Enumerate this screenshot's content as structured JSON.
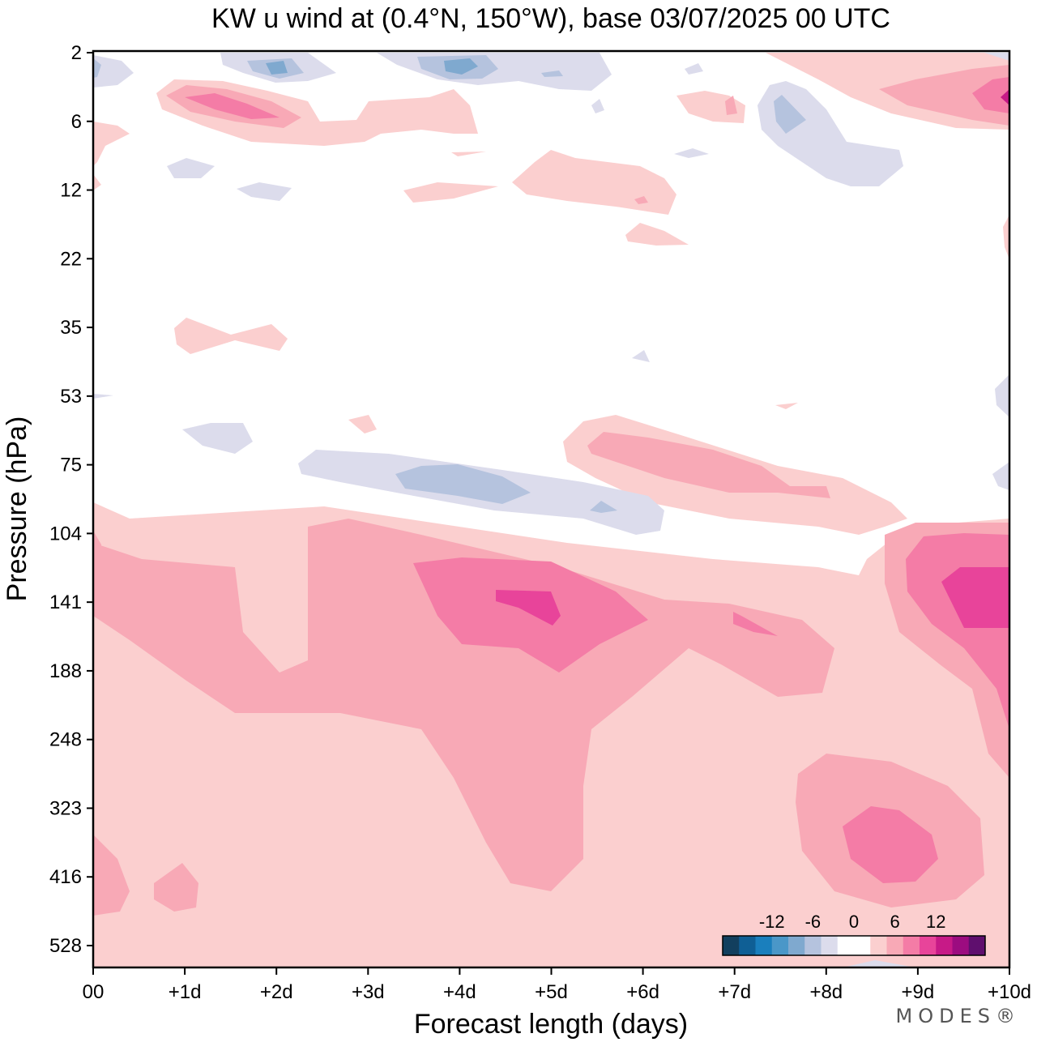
{
  "chart_data": {
    "type": "heatmap",
    "title": "KW u wind at (0.4°N, 150°W),  base 03/07/2025  00 UTC",
    "xlabel": "Forecast length (days)",
    "ylabel": "Pressure (hPa)",
    "x_ticks": [
      "00",
      "+1d",
      "+2d",
      "+3d",
      "+4d",
      "+5d",
      "+6d",
      "+7d",
      "+8d",
      "+9d",
      "+10d"
    ],
    "x_range_days": [
      0,
      10
    ],
    "y_ticks": [
      "2",
      "6",
      "12",
      "22",
      "35",
      "53",
      "75",
      "104",
      "141",
      "188",
      "248",
      "323",
      "416",
      "528"
    ],
    "colorbar": {
      "labels": [
        "-12",
        "-6",
        "0",
        "6",
        "12"
      ],
      "levels": [
        -15,
        -13,
        -11,
        -9,
        -7,
        -5,
        -3,
        -1,
        1,
        3,
        5,
        7,
        9,
        11,
        13,
        15
      ],
      "colors": [
        "#123f5e",
        "#0f5f95",
        "#1a7fbd",
        "#4a97c8",
        "#7fa9cf",
        "#b5c3de",
        "#dcdcec",
        "#ffffff",
        "#ffffff",
        "#fbcfcf",
        "#f8a9b6",
        "#f47ca6",
        "#e8449a",
        "#c71a87",
        "#9c0c80",
        "#5f0f6e"
      ]
    },
    "features": [
      {
        "name": "lower-tropo-westerly",
        "value": 2,
        "color_level": "0-3",
        "region": "below ~100 hPa, all days"
      },
      {
        "name": "jet-141hPa-day4-5",
        "value": 9,
        "region": "~130-160 hPa, days 4-5"
      },
      {
        "name": "jet-141hPa-day10",
        "value": 9,
        "region": "~120-170 hPa, days 9.5-10"
      },
      {
        "name": "mid-tropo-max-day8-9",
        "value": 7,
        "region": "~330-420 hPa, days 8.2-9.2"
      },
      {
        "name": "easterly-75hPa",
        "value": -4,
        "region": "~75-95 hPa, days 2.3-6.3"
      },
      {
        "name": "strat-westerly-5hPa",
        "value": 9,
        "region": "~4-6 hPa, days 1-2"
      }
    ]
  },
  "brand": "MODES®"
}
